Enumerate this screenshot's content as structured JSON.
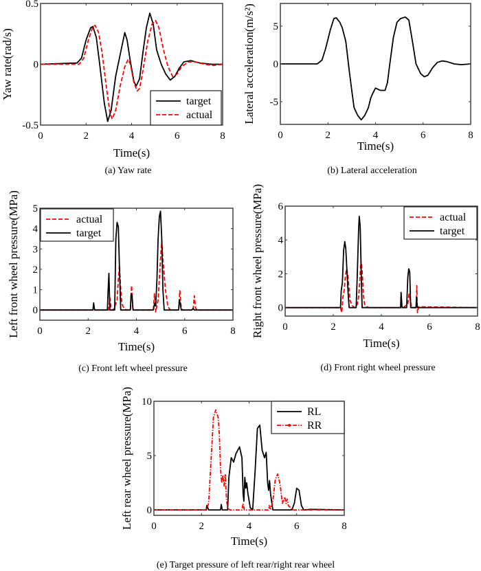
{
  "figure": {
    "colors": {
      "target": "#000000",
      "actual": "#ff0000",
      "RL": "#000000",
      "RR": "#ff0000"
    }
  },
  "chart_data": [
    {
      "id": "a",
      "type": "line",
      "caption": "(a)  Yaw rate",
      "xlabel": "Time(s)",
      "ylabel": "Yaw rate(rad/s)",
      "xlim": [
        0,
        8
      ],
      "ylim": [
        -0.5,
        0.5
      ],
      "xticks": [
        0,
        2,
        4,
        6,
        8
      ],
      "yticks": [
        -0.5,
        0,
        0.5
      ],
      "ytick_labels": [
        "-0.5",
        "0",
        "0.5"
      ],
      "grid": false,
      "legend_position": "bottom-right",
      "series": [
        {
          "name": "target",
          "style": "solid",
          "color": "#000000",
          "x": [
            0,
            1.6,
            1.8,
            2.0,
            2.2,
            2.3,
            2.45,
            2.6,
            2.8,
            2.95,
            3.1,
            3.3,
            3.5,
            3.7,
            3.8,
            3.95,
            4.1,
            4.2,
            4.35,
            4.5,
            4.65,
            4.8,
            4.95,
            5.1,
            5.3,
            5.5,
            5.7,
            5.9,
            6.1,
            6.3,
            6.6,
            7.0,
            7.5,
            8.0
          ],
          "y": [
            0,
            0.01,
            0.05,
            0.2,
            0.3,
            0.31,
            0.22,
            0.0,
            -0.32,
            -0.47,
            -0.38,
            -0.1,
            0.08,
            0.26,
            0.2,
            0.02,
            -0.14,
            -0.18,
            -0.12,
            0.1,
            0.3,
            0.42,
            0.33,
            0.12,
            0.0,
            -0.08,
            -0.13,
            -0.1,
            -0.03,
            0.02,
            0.03,
            0.01,
            0.0,
            0.0
          ]
        },
        {
          "name": "actual",
          "style": "dashed",
          "color": "#ff0000",
          "x": [
            0,
            1.7,
            1.9,
            2.1,
            2.3,
            2.4,
            2.55,
            2.7,
            2.9,
            3.05,
            3.15,
            3.3,
            3.5,
            3.7,
            3.85,
            3.95,
            4.1,
            4.25,
            4.35,
            4.5,
            4.7,
            4.9,
            5.05,
            5.2,
            5.4,
            5.6,
            5.8,
            6.0,
            6.2,
            6.5,
            6.8,
            7.2,
            7.6,
            8.0
          ],
          "y": [
            0,
            0.0,
            0.05,
            0.2,
            0.31,
            0.32,
            0.26,
            0.1,
            -0.2,
            -0.4,
            -0.45,
            -0.38,
            -0.18,
            -0.02,
            0.04,
            0.0,
            -0.15,
            -0.22,
            -0.2,
            -0.05,
            0.18,
            0.33,
            0.36,
            0.3,
            0.12,
            -0.02,
            -0.1,
            -0.08,
            -0.02,
            0.02,
            0.02,
            0.0,
            -0.01,
            0.0
          ]
        }
      ]
    },
    {
      "id": "b",
      "type": "line",
      "caption": "(b)  Lateral acceleration",
      "xlabel": "Time(s)",
      "ylabel": "Lateral acceleration(m/s²)",
      "xlim": [
        0,
        8
      ],
      "ylim": [
        -8,
        8
      ],
      "xticks": [
        0,
        2,
        4,
        6,
        8
      ],
      "yticks": [
        -5,
        0,
        5
      ],
      "ytick_labels": [
        "-5",
        "0",
        "5"
      ],
      "grid": false,
      "series": [
        {
          "name": "lateral acceleration",
          "style": "solid",
          "color": "#000000",
          "x": [
            0,
            1.55,
            1.75,
            1.9,
            2.1,
            2.25,
            2.35,
            2.5,
            2.6,
            2.75,
            2.9,
            3.0,
            3.1,
            3.25,
            3.4,
            3.55,
            3.7,
            3.8,
            3.9,
            4.0,
            4.2,
            4.4,
            4.5,
            4.6,
            4.75,
            4.9,
            5.05,
            5.25,
            5.4,
            5.55,
            5.7,
            5.9,
            6.05,
            6.2,
            6.4,
            6.6,
            6.8,
            7.0,
            7.3,
            7.6,
            8.0
          ],
          "y": [
            0,
            0,
            0.5,
            2.0,
            4.5,
            6.0,
            6.1,
            5.5,
            4.8,
            3.0,
            -1.0,
            -3.5,
            -5.8,
            -6.8,
            -7.4,
            -6.8,
            -5.8,
            -4.5,
            -3.8,
            -3.2,
            -3.5,
            -3.5,
            -2.5,
            0,
            3.5,
            5.5,
            6.0,
            6.2,
            5.8,
            3.0,
            0.0,
            -1.3,
            -1.7,
            -1.5,
            -0.5,
            0.2,
            0.4,
            0.3,
            0.0,
            -0.1,
            0.0
          ]
        }
      ]
    },
    {
      "id": "c",
      "type": "line",
      "caption": "(c)  Front left wheel pressure",
      "xlabel": "Time(s)",
      "ylabel": "Left front wheel pressure(MPa)",
      "xlim": [
        0,
        8
      ],
      "ylim": [
        -0.5,
        5
      ],
      "xticks": [
        0,
        2,
        4,
        6,
        8
      ],
      "yticks": [
        0,
        1,
        2,
        3,
        4,
        5
      ],
      "ytick_labels": [
        "0",
        "1",
        "2",
        "3",
        "4",
        "5"
      ],
      "grid": false,
      "legend_position": "top-left",
      "series": [
        {
          "name": "actual",
          "style": "dashed",
          "color": "#ff0000",
          "x": [
            0,
            2.85,
            2.9,
            2.95,
            3.0,
            3.05,
            3.2,
            3.25,
            3.3,
            3.35,
            3.4,
            3.5,
            3.6,
            3.75,
            3.8,
            3.85,
            3.9,
            4.7,
            4.75,
            4.8,
            4.9,
            5.0,
            5.05,
            5.1,
            5.2,
            5.3,
            5.4,
            5.75,
            5.8,
            5.85,
            5.9,
            6.35,
            6.4,
            6.45,
            6.5,
            8.0
          ],
          "y": [
            0,
            0,
            0.6,
            0.1,
            0,
            0,
            0.5,
            1.5,
            2.2,
            1.0,
            0.3,
            0.05,
            0,
            0,
            1.2,
            0.1,
            0,
            0,
            0.8,
            -0.1,
            0.5,
            2.5,
            3.4,
            2.5,
            1.0,
            0.2,
            0,
            0,
            0.95,
            0.2,
            0,
            0,
            0.7,
            0.1,
            0,
            0
          ]
        },
        {
          "name": "target",
          "style": "solid",
          "color": "#000000",
          "x": [
            0,
            2.2,
            2.23,
            2.27,
            2.8,
            2.83,
            2.86,
            2.9,
            3.1,
            3.15,
            3.2,
            3.25,
            3.3,
            3.35,
            3.75,
            3.78,
            3.82,
            3.86,
            4.7,
            4.75,
            4.8,
            4.85,
            4.9,
            4.95,
            5.0,
            5.05,
            5.1,
            5.15,
            5.75,
            5.78,
            5.82,
            5.86,
            6.3,
            6.35,
            6.4,
            8.0
          ],
          "y": [
            0,
            0,
            0.35,
            0,
            0,
            1.0,
            1.8,
            0,
            0,
            3.5,
            4.3,
            4.1,
            2.0,
            0,
            0,
            0.8,
            0.7,
            0,
            0,
            0.3,
            0.2,
            1.5,
            3.5,
            4.6,
            4.85,
            3.5,
            1.0,
            0,
            0,
            0.5,
            0.3,
            0,
            0,
            0.08,
            0,
            0
          ]
        }
      ]
    },
    {
      "id": "d",
      "type": "line",
      "caption": "(d)  Front right wheel pressure",
      "xlabel": "Time(s)",
      "ylabel": "Right front wheel pressure(MPa)",
      "xlim": [
        0,
        8
      ],
      "ylim": [
        -0.5,
        6
      ],
      "xticks": [
        0,
        2,
        4,
        6,
        8
      ],
      "yticks": [
        0,
        2,
        4,
        6
      ],
      "ytick_labels": [
        "0",
        "2",
        "4",
        "6"
      ],
      "grid": false,
      "legend_position": "top-right",
      "series": [
        {
          "name": "actual",
          "style": "dashed",
          "color": "#ff0000",
          "x": [
            0,
            2.3,
            2.35,
            2.4,
            2.45,
            2.5,
            2.55,
            2.6,
            2.65,
            2.7,
            2.8,
            2.9,
            3.0,
            3.05,
            3.1,
            3.15,
            3.2,
            3.25,
            3.3,
            3.4,
            3.5,
            4.8,
            4.85,
            5.1,
            5.15,
            5.2,
            5.25,
            5.45,
            5.47,
            5.5,
            5.55,
            8.0
          ],
          "y": [
            0,
            0,
            -0.3,
            0.6,
            1.0,
            1.8,
            2.3,
            2.0,
            1.2,
            0.4,
            0.1,
            0,
            0.2,
            0.6,
            1.5,
            2.8,
            2.2,
            0.8,
            0.2,
            0.05,
            0,
            0,
            -0.05,
            0.2,
            0.8,
            0.5,
            0,
            0,
            1.3,
            -0.3,
            0.05,
            0
          ]
        },
        {
          "name": "target",
          "style": "solid",
          "color": "#000000",
          "x": [
            0,
            2.3,
            2.33,
            2.38,
            2.43,
            2.48,
            2.52,
            2.57,
            2.62,
            2.66,
            2.95,
            3.0,
            3.05,
            3.08,
            3.12,
            3.17,
            3.2,
            4.8,
            4.82,
            4.86,
            5.05,
            5.1,
            5.14,
            5.18,
            5.22,
            5.44,
            5.46,
            5.5,
            8.0
          ],
          "y": [
            0,
            0,
            1.0,
            1.5,
            3.4,
            3.9,
            3.5,
            2.2,
            0.8,
            0,
            0,
            2.0,
            4.5,
            5.4,
            4.8,
            1.5,
            0,
            0,
            0.9,
            0,
            0,
            1.8,
            2.3,
            2.1,
            0,
            0,
            0.6,
            0,
            0
          ]
        }
      ]
    },
    {
      "id": "e",
      "type": "line",
      "caption": "(e)  Target pressure of left rear/right rear wheel",
      "xlabel": "Time(s)",
      "ylabel": "Left rear wheel pressure(MPa)",
      "xlim": [
        0,
        8
      ],
      "ylim": [
        -0.5,
        10
      ],
      "xticks": [
        0,
        2,
        4,
        6,
        8
      ],
      "yticks": [
        0,
        5,
        10
      ],
      "ytick_labels": [
        "0",
        "5",
        "10"
      ],
      "grid": false,
      "legend_position": "top-right",
      "series": [
        {
          "name": "RL",
          "style": "solid",
          "color": "#000000",
          "x": [
            0,
            2.2,
            2.22,
            2.26,
            2.3,
            2.8,
            2.83,
            2.87,
            3.1,
            3.15,
            3.25,
            3.35,
            3.45,
            3.6,
            3.7,
            3.75,
            3.78,
            3.82,
            3.86,
            3.9,
            3.95,
            4.05,
            4.15,
            4.25,
            4.35,
            4.45,
            4.55,
            4.65,
            4.72,
            4.78,
            4.82,
            4.86,
            4.9,
            5.0,
            5.8,
            5.9,
            6.0,
            6.1,
            6.2,
            6.3,
            6.6,
            8.0
          ],
          "y": [
            0,
            0,
            0.4,
            0.2,
            0,
            0,
            0.5,
            0,
            0,
            3.0,
            4.8,
            4.4,
            5.2,
            5.8,
            4.8,
            1.5,
            0.8,
            3.0,
            2.0,
            2.5,
            1.5,
            0.2,
            0,
            3.5,
            7.5,
            7.8,
            5.5,
            4.8,
            5.3,
            2.5,
            1.8,
            2.7,
            1.5,
            0,
            0,
            0.6,
            2.0,
            1.8,
            0.4,
            0,
            0.05,
            0
          ]
        },
        {
          "name": "RR",
          "style": "dash-dot",
          "color": "#ff0000",
          "x": [
            0,
            2.2,
            2.3,
            2.4,
            2.5,
            2.6,
            2.7,
            2.75,
            2.8,
            2.85,
            2.9,
            2.95,
            3.0,
            3.05,
            3.1,
            3.2,
            3.7,
            3.75,
            3.8,
            4.8,
            4.85,
            4.9,
            5.0,
            5.1,
            5.2,
            5.3,
            5.4,
            5.5,
            5.55,
            5.6,
            5.65,
            5.7,
            5.8,
            8.0
          ],
          "y": [
            0,
            0,
            0.6,
            4.5,
            8.5,
            9.2,
            8.5,
            7.0,
            3.8,
            2.5,
            3.2,
            2.2,
            3.3,
            1.0,
            0.1,
            0,
            0,
            0.6,
            0,
            0,
            0.4,
            0,
            0.8,
            2.8,
            3.3,
            2.4,
            0.6,
            1.2,
            0.6,
            1.0,
            0.4,
            0.3,
            0,
            0
          ]
        }
      ]
    }
  ]
}
